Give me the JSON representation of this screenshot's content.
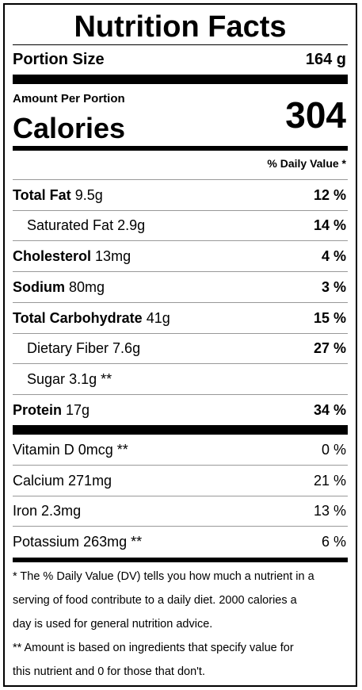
{
  "title": "Nutrition Facts",
  "portion": {
    "label": "Portion Size",
    "value": "164 g"
  },
  "amount_per_portion": "Amount Per Portion",
  "calories": {
    "label": "Calories",
    "value": "304"
  },
  "daily_value_header": "% Daily Value *",
  "nutrients": [
    {
      "name": "Total Fat",
      "amount": "9.5g",
      "dv": "12 %",
      "bold": true,
      "indent": false
    },
    {
      "name": "Saturated Fat",
      "amount": "2.9g",
      "dv": "14 %",
      "bold": false,
      "indent": true
    },
    {
      "name": "Cholesterol",
      "amount": "13mg",
      "dv": "4 %",
      "bold": true,
      "indent": false
    },
    {
      "name": "Sodium",
      "amount": "80mg",
      "dv": "3 %",
      "bold": true,
      "indent": false
    },
    {
      "name": "Total Carbohydrate",
      "amount": "41g",
      "dv": "15 %",
      "bold": true,
      "indent": false
    },
    {
      "name": "Dietary Fiber",
      "amount": "7.6g",
      "dv": "27 %",
      "bold": false,
      "indent": true
    },
    {
      "name": "Sugar",
      "amount": "3.1g **",
      "dv": "",
      "bold": false,
      "indent": true
    },
    {
      "name": "Protein",
      "amount": "17g",
      "dv": "34 %",
      "bold": true,
      "indent": false
    }
  ],
  "vitamins": [
    {
      "name": "Vitamin D",
      "amount": "0mcg **",
      "dv": "0 %"
    },
    {
      "name": "Calcium",
      "amount": "271mg",
      "dv": "21 %"
    },
    {
      "name": "Iron",
      "amount": "2.3mg",
      "dv": "13 %"
    },
    {
      "name": "Potassium",
      "amount": "263mg **",
      "dv": "6 %"
    }
  ],
  "footnotes": {
    "line1": "* The % Daily Value (DV) tells you how much a nutrient in a",
    "line2": "serving of food contribute to a daily diet. 2000 calories a",
    "line3": "day is used for general nutrition advice.",
    "line4": "** Amount is based on ingredients that specify value for",
    "line5": "this nutrient and 0 for those that don't."
  }
}
